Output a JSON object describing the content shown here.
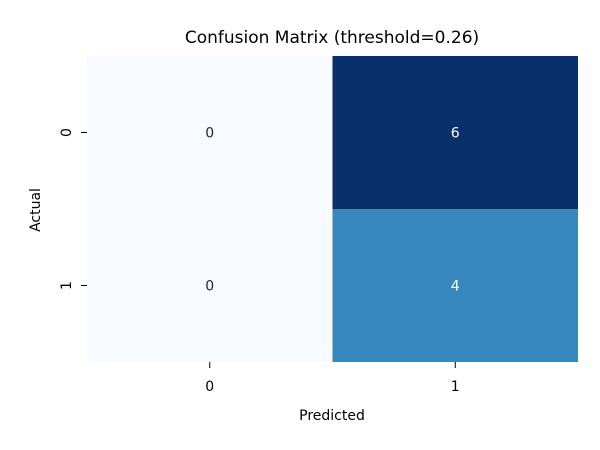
{
  "chart_data": {
    "type": "heatmap",
    "title": "Confusion Matrix (threshold=0.26)",
    "xlabel": "Predicted",
    "ylabel": "Actual",
    "x_categories": [
      "0",
      "1"
    ],
    "y_categories": [
      "0",
      "1"
    ],
    "values": [
      [
        0,
        6
      ],
      [
        0,
        4
      ]
    ],
    "colormap": "Blues",
    "value_range": [
      0,
      6
    ],
    "colors": {
      "low": "#f7fbff",
      "mid": "#3787c0",
      "high": "#08306b",
      "text_dark": "#262626",
      "text_light": "#ffffff"
    },
    "colorbar": false,
    "grid": false
  }
}
